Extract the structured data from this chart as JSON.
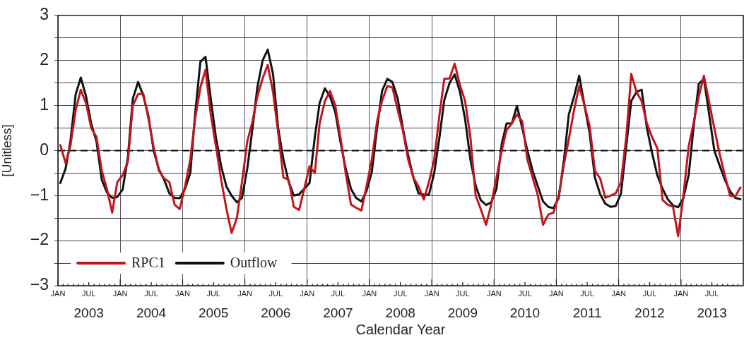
{
  "chart_data": {
    "type": "line",
    "xlabel": "Calendar Year",
    "ylabel": "[Unitless]",
    "x": [
      "2003-01-15",
      "2003-02-15",
      "2003-03-15",
      "2003-04-15",
      "2003-05-15",
      "2003-06-15",
      "2003-07-15",
      "2003-08-15",
      "2003-09-15",
      "2003-10-15",
      "2003-11-15",
      "2003-12-15",
      "2004-01-15",
      "2004-02-15",
      "2004-03-15",
      "2004-04-15",
      "2004-05-15",
      "2004-06-15",
      "2004-07-15",
      "2004-08-15",
      "2004-09-15",
      "2004-10-15",
      "2004-11-15",
      "2004-12-15",
      "2005-01-15",
      "2005-02-15",
      "2005-03-15",
      "2005-04-15",
      "2005-05-15",
      "2005-06-15",
      "2005-07-15",
      "2005-08-15",
      "2005-09-15",
      "2005-10-15",
      "2005-11-15",
      "2005-12-15",
      "2006-01-15",
      "2006-02-15",
      "2006-03-15",
      "2006-04-15",
      "2006-05-15",
      "2006-06-15",
      "2006-07-15",
      "2006-08-15",
      "2006-09-15",
      "2006-10-15",
      "2006-11-15",
      "2006-12-15",
      "2007-01-15",
      "2007-02-15",
      "2007-03-15",
      "2007-04-15",
      "2007-05-15",
      "2007-06-15",
      "2007-07-15",
      "2007-08-15",
      "2007-09-15",
      "2007-10-15",
      "2007-11-15",
      "2007-12-15",
      "2008-01-15",
      "2008-02-15",
      "2008-03-15",
      "2008-04-15",
      "2008-05-15",
      "2008-06-15",
      "2008-07-15",
      "2008-08-15",
      "2008-09-15",
      "2008-10-15",
      "2008-11-15",
      "2008-12-15",
      "2009-01-15",
      "2009-02-15",
      "2009-03-15",
      "2009-04-15",
      "2009-05-15",
      "2009-06-15",
      "2009-07-15",
      "2009-08-15",
      "2009-09-15",
      "2009-10-15",
      "2009-11-15",
      "2009-12-15",
      "2010-01-15",
      "2010-02-15",
      "2010-03-15",
      "2010-04-15",
      "2010-05-15",
      "2010-06-15",
      "2010-07-15",
      "2010-08-15",
      "2010-09-15",
      "2010-10-15",
      "2010-11-15",
      "2010-12-15",
      "2011-01-15",
      "2011-02-15",
      "2011-03-15",
      "2011-04-15",
      "2011-05-15",
      "2011-06-15",
      "2011-07-15",
      "2011-08-15",
      "2011-09-15",
      "2011-10-15",
      "2011-11-15",
      "2011-12-15",
      "2012-01-15",
      "2012-02-15",
      "2012-03-15",
      "2012-04-15",
      "2012-05-15",
      "2012-06-15",
      "2012-07-15",
      "2012-08-15",
      "2012-09-15",
      "2012-10-15",
      "2012-11-15",
      "2012-12-15",
      "2013-01-15",
      "2013-02-15",
      "2013-03-15",
      "2013-04-15",
      "2013-05-15",
      "2013-06-15",
      "2013-07-15",
      "2013-08-15",
      "2013-09-15",
      "2013-10-15",
      "2013-11-15",
      "2013-12-15"
    ],
    "series": [
      {
        "name": "RPC1",
        "color": "#c0161e",
        "values": [
          0.12,
          -0.28,
          0.1,
          0.9,
          1.35,
          1.05,
          0.5,
          0.3,
          -0.45,
          -0.85,
          -1.38,
          -0.7,
          -0.55,
          -0.25,
          1.0,
          1.25,
          1.27,
          0.7,
          0.08,
          -0.45,
          -0.62,
          -0.7,
          -1.2,
          -1.3,
          -0.8,
          -0.2,
          0.7,
          1.4,
          1.79,
          0.8,
          0.1,
          -0.65,
          -1.3,
          -1.83,
          -1.5,
          -0.7,
          0.2,
          0.65,
          1.2,
          1.6,
          1.9,
          1.3,
          0.4,
          -0.6,
          -0.65,
          -1.25,
          -1.32,
          -0.85,
          -0.35,
          -0.5,
          0.6,
          1.1,
          1.32,
          1.0,
          0.3,
          -0.5,
          -1.2,
          -1.27,
          -1.33,
          -0.8,
          -0.2,
          0.65,
          1.1,
          1.43,
          1.4,
          0.9,
          0.45,
          -0.2,
          -0.6,
          -0.8,
          -1.09,
          -0.7,
          -0.2,
          0.8,
          1.59,
          1.6,
          1.93,
          1.45,
          1.1,
          0.3,
          -1.0,
          -1.3,
          -1.65,
          -1.2,
          -0.6,
          0.0,
          0.45,
          0.6,
          0.8,
          0.65,
          -0.2,
          -0.6,
          -1.0,
          -1.65,
          -1.42,
          -1.38,
          -1.0,
          -0.3,
          0.25,
          0.9,
          1.43,
          1.0,
          0.55,
          -0.45,
          -0.62,
          -1.05,
          -1.0,
          -0.95,
          -0.7,
          0.3,
          1.7,
          1.3,
          1.1,
          0.6,
          0.3,
          0.05,
          -1.1,
          -1.2,
          -1.25,
          -1.9,
          -1.0,
          0.1,
          0.6,
          1.2,
          1.66,
          1.07,
          0.5,
          -0.07,
          -0.55,
          -1.0,
          -1.02,
          -0.82
        ]
      },
      {
        "name": "Outflow",
        "color": "#111111",
        "values": [
          -0.72,
          -0.4,
          0.2,
          1.25,
          1.62,
          1.2,
          0.6,
          0.2,
          -0.65,
          -0.93,
          -1.05,
          -1.03,
          -0.87,
          -0.15,
          1.15,
          1.52,
          1.22,
          0.76,
          0.0,
          -0.42,
          -0.65,
          -0.95,
          -1.05,
          -1.06,
          -0.85,
          -0.5,
          0.8,
          1.97,
          2.08,
          1.15,
          0.3,
          -0.35,
          -0.8,
          -1.0,
          -1.15,
          -1.05,
          -0.4,
          0.5,
          1.4,
          2.0,
          2.24,
          1.7,
          0.5,
          -0.2,
          -0.7,
          -1.0,
          -0.97,
          -0.85,
          -0.72,
          0.3,
          1.05,
          1.38,
          1.2,
          0.85,
          0.2,
          -0.4,
          -0.85,
          -1.05,
          -1.13,
          -0.9,
          -0.48,
          0.5,
          1.32,
          1.59,
          1.52,
          1.15,
          0.5,
          -0.1,
          -0.6,
          -0.95,
          -0.98,
          -0.98,
          -0.5,
          0.3,
          1.12,
          1.5,
          1.69,
          1.3,
          0.7,
          -0.2,
          -0.78,
          -1.1,
          -1.21,
          -1.15,
          -0.85,
          0.15,
          0.6,
          0.6,
          0.99,
          0.5,
          0.0,
          -0.45,
          -0.8,
          -1.13,
          -1.25,
          -1.28,
          -1.05,
          -0.2,
          0.8,
          1.2,
          1.66,
          1.0,
          0.39,
          -0.6,
          -0.97,
          -1.18,
          -1.25,
          -1.23,
          -0.95,
          0.1,
          1.1,
          1.3,
          1.35,
          0.5,
          -0.05,
          -0.55,
          -0.85,
          -1.08,
          -1.22,
          -1.26,
          -1.05,
          -0.54,
          0.5,
          1.48,
          1.59,
          0.8,
          0.0,
          -0.33,
          -0.65,
          -0.9,
          -1.05,
          -1.08
        ]
      }
    ],
    "xlim": [
      "2003-01-01",
      "2014-01-01"
    ],
    "xticks": [
      {
        "value": "2003-01-01",
        "label": "JAN"
      },
      {
        "value": "2003-02-01",
        "label": null
      },
      {
        "value": "2003-03-01",
        "label": null
      },
      {
        "value": "2003-04-01",
        "label": null
      },
      {
        "value": "2003-05-01",
        "label": null
      },
      {
        "value": "2003-06-01",
        "label": null
      },
      {
        "value": "2003-07-01",
        "label": "JUL"
      },
      {
        "value": "2003-08-01",
        "label": null
      },
      {
        "value": "2003-09-01",
        "label": null
      },
      {
        "value": "2003-10-01",
        "label": null
      },
      {
        "value": "2003-11-01",
        "label": null
      },
      {
        "value": "2003-12-01",
        "label": null
      },
      {
        "value": "2004-01-01",
        "label": "JAN"
      },
      {
        "value": "2004-02-01",
        "label": null
      },
      {
        "value": "2004-03-01",
        "label": null
      },
      {
        "value": "2004-04-01",
        "label": null
      },
      {
        "value": "2004-05-01",
        "label": null
      },
      {
        "value": "2004-06-01",
        "label": null
      },
      {
        "value": "2004-07-01",
        "label": "JUL"
      },
      {
        "value": "2004-08-01",
        "label": null
      },
      {
        "value": "2004-09-01",
        "label": null
      },
      {
        "value": "2004-10-01",
        "label": null
      },
      {
        "value": "2004-11-01",
        "label": null
      },
      {
        "value": "2004-12-01",
        "label": null
      },
      {
        "value": "2005-01-01",
        "label": "JAN"
      },
      {
        "value": "2005-02-01",
        "label": null
      },
      {
        "value": "2005-03-01",
        "label": null
      },
      {
        "value": "2005-04-01",
        "label": null
      },
      {
        "value": "2005-05-01",
        "label": null
      },
      {
        "value": "2005-06-01",
        "label": null
      },
      {
        "value": "2005-07-01",
        "label": "JUL"
      },
      {
        "value": "2005-08-01",
        "label": null
      },
      {
        "value": "2005-09-01",
        "label": null
      },
      {
        "value": "2005-10-01",
        "label": null
      },
      {
        "value": "2005-11-01",
        "label": null
      },
      {
        "value": "2005-12-01",
        "label": null
      },
      {
        "value": "2006-01-01",
        "label": "JAN"
      },
      {
        "value": "2006-02-01",
        "label": null
      },
      {
        "value": "2006-03-01",
        "label": null
      },
      {
        "value": "2006-04-01",
        "label": null
      },
      {
        "value": "2006-05-01",
        "label": null
      },
      {
        "value": "2006-06-01",
        "label": null
      },
      {
        "value": "2006-07-01",
        "label": "JUL"
      },
      {
        "value": "2006-08-01",
        "label": null
      },
      {
        "value": "2006-09-01",
        "label": null
      },
      {
        "value": "2006-10-01",
        "label": null
      },
      {
        "value": "2006-11-01",
        "label": null
      },
      {
        "value": "2006-12-01",
        "label": null
      },
      {
        "value": "2007-01-01",
        "label": "JAN"
      },
      {
        "value": "2007-02-01",
        "label": null
      },
      {
        "value": "2007-03-01",
        "label": null
      },
      {
        "value": "2007-04-01",
        "label": null
      },
      {
        "value": "2007-05-01",
        "label": null
      },
      {
        "value": "2007-06-01",
        "label": null
      },
      {
        "value": "2007-07-01",
        "label": "JUL"
      },
      {
        "value": "2007-08-01",
        "label": null
      },
      {
        "value": "2007-09-01",
        "label": null
      },
      {
        "value": "2007-10-01",
        "label": null
      },
      {
        "value": "2007-11-01",
        "label": null
      },
      {
        "value": "2007-12-01",
        "label": null
      },
      {
        "value": "2008-01-01",
        "label": "JAN"
      },
      {
        "value": "2008-02-01",
        "label": null
      },
      {
        "value": "2008-03-01",
        "label": null
      },
      {
        "value": "2008-04-01",
        "label": null
      },
      {
        "value": "2008-05-01",
        "label": null
      },
      {
        "value": "2008-06-01",
        "label": null
      },
      {
        "value": "2008-07-01",
        "label": "JUL"
      },
      {
        "value": "2008-08-01",
        "label": null
      },
      {
        "value": "2008-09-01",
        "label": null
      },
      {
        "value": "2008-10-01",
        "label": null
      },
      {
        "value": "2008-11-01",
        "label": null
      },
      {
        "value": "2008-12-01",
        "label": null
      },
      {
        "value": "2009-01-01",
        "label": "JAN"
      },
      {
        "value": "2009-02-01",
        "label": null
      },
      {
        "value": "2009-03-01",
        "label": null
      },
      {
        "value": "2009-04-01",
        "label": null
      },
      {
        "value": "2009-05-01",
        "label": null
      },
      {
        "value": "2009-06-01",
        "label": null
      },
      {
        "value": "2009-07-01",
        "label": "JUL"
      },
      {
        "value": "2009-08-01",
        "label": null
      },
      {
        "value": "2009-09-01",
        "label": null
      },
      {
        "value": "2009-10-01",
        "label": null
      },
      {
        "value": "2009-11-01",
        "label": null
      },
      {
        "value": "2009-12-01",
        "label": null
      },
      {
        "value": "2010-01-01",
        "label": "JAN"
      },
      {
        "value": "2010-02-01",
        "label": null
      },
      {
        "value": "2010-03-01",
        "label": null
      },
      {
        "value": "2010-04-01",
        "label": null
      },
      {
        "value": "2010-05-01",
        "label": null
      },
      {
        "value": "2010-06-01",
        "label": null
      },
      {
        "value": "2010-07-01",
        "label": "JUL"
      },
      {
        "value": "2010-08-01",
        "label": null
      },
      {
        "value": "2010-09-01",
        "label": null
      },
      {
        "value": "2010-10-01",
        "label": null
      },
      {
        "value": "2010-11-01",
        "label": null
      },
      {
        "value": "2010-12-01",
        "label": null
      },
      {
        "value": "2011-01-01",
        "label": "JAN"
      },
      {
        "value": "2011-02-01",
        "label": null
      },
      {
        "value": "2011-03-01",
        "label": null
      },
      {
        "value": "2011-04-01",
        "label": null
      },
      {
        "value": "2011-05-01",
        "label": null
      },
      {
        "value": "2011-06-01",
        "label": null
      },
      {
        "value": "2011-07-01",
        "label": "JUL"
      },
      {
        "value": "2011-08-01",
        "label": null
      },
      {
        "value": "2011-09-01",
        "label": null
      },
      {
        "value": "2011-10-01",
        "label": null
      },
      {
        "value": "2011-11-01",
        "label": null
      },
      {
        "value": "2011-12-01",
        "label": null
      },
      {
        "value": "2012-01-01",
        "label": "JAN"
      },
      {
        "value": "2012-02-01",
        "label": null
      },
      {
        "value": "2012-03-01",
        "label": null
      },
      {
        "value": "2012-04-01",
        "label": null
      },
      {
        "value": "2012-05-01",
        "label": null
      },
      {
        "value": "2012-06-01",
        "label": null
      },
      {
        "value": "2012-07-01",
        "label": "JUL"
      },
      {
        "value": "2012-08-01",
        "label": null
      },
      {
        "value": "2012-09-01",
        "label": null
      },
      {
        "value": "2012-10-01",
        "label": null
      },
      {
        "value": "2012-11-01",
        "label": null
      },
      {
        "value": "2012-12-01",
        "label": null
      },
      {
        "value": "2013-01-01",
        "label": "JAN"
      },
      {
        "value": "2013-02-01",
        "label": null
      },
      {
        "value": "2013-03-01",
        "label": null
      },
      {
        "value": "2013-04-01",
        "label": null
      },
      {
        "value": "2013-05-01",
        "label": null
      },
      {
        "value": "2013-06-01",
        "label": null
      },
      {
        "value": "2013-07-01",
        "label": "JUL"
      },
      {
        "value": "2013-08-01",
        "label": null
      },
      {
        "value": "2013-09-01",
        "label": null
      },
      {
        "value": "2013-10-01",
        "label": null
      },
      {
        "value": "2013-11-01",
        "label": null
      },
      {
        "value": "2013-12-01",
        "label": null
      }
    ],
    "x2lim": [
      "2003-01-01",
      "2014-01-01"
    ],
    "x2ticks": [
      {
        "value": "2003-07-01",
        "label": "2003"
      },
      {
        "value": "2004-07-01",
        "label": "2004"
      },
      {
        "value": "2005-07-01",
        "label": "2005"
      },
      {
        "value": "2006-07-01",
        "label": "2006"
      },
      {
        "value": "2007-07-01",
        "label": "2007"
      },
      {
        "value": "2008-07-01",
        "label": "2008"
      },
      {
        "value": "2009-07-01",
        "label": "2009"
      },
      {
        "value": "2010-07-01",
        "label": "2010"
      },
      {
        "value": "2011-07-01",
        "label": "2011"
      },
      {
        "value": "2012-07-01",
        "label": "2012"
      },
      {
        "value": "2013-07-01",
        "label": "2013"
      }
    ],
    "ylim": [
      -3,
      3
    ],
    "yticks": [
      {
        "value": -3,
        "label": "−3"
      },
      {
        "value": -2.5,
        "label": null
      },
      {
        "value": -2,
        "label": "−2"
      },
      {
        "value": -1.5,
        "label": null
      },
      {
        "value": -1,
        "label": "−1"
      },
      {
        "value": -0.5,
        "label": null
      },
      0,
      {
        "value": 0.5,
        "label": null
      },
      1,
      {
        "value": 1.5,
        "label": null
      },
      2,
      {
        "value": 2.5,
        "label": null
      },
      3
    ],
    "ref_lines": [
      {
        "axis": "y",
        "value": 0,
        "label": null,
        "color": "#000000",
        "line_style": "dashed"
      }
    ],
    "grid": true,
    "legend": "bottom left",
    "marker": "none",
    "line_style": "solid"
  }
}
